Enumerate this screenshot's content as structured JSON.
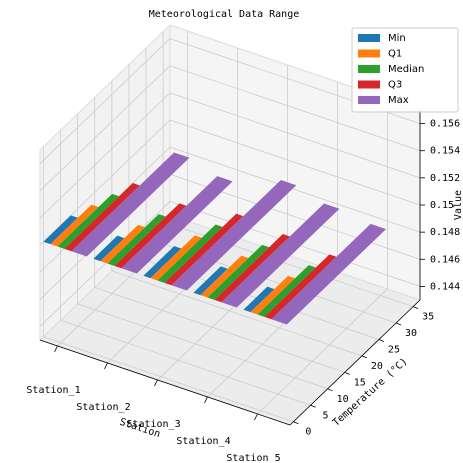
{
  "chart_data": {
    "type": "bar3d",
    "title": "Meteorological Data Range",
    "categories": [
      "Station_1",
      "Station_2",
      "Station_3",
      "Station_4",
      "Station_5"
    ],
    "xlabel": "Station",
    "ylabel": "Temperature (°C)",
    "zlabel": "Value",
    "series": [
      {
        "name": "Min",
        "color": "#1f77b4",
        "values": [
          8,
          7,
          9,
          8,
          7
        ]
      },
      {
        "name": "Q1",
        "color": "#ff7f0e",
        "values": [
          12,
          11,
          13,
          12,
          11
        ]
      },
      {
        "name": "Median",
        "color": "#2ca02c",
        "values": [
          16,
          15,
          17,
          16,
          15
        ]
      },
      {
        "name": "Q3",
        "color": "#d62728",
        "values": [
          20,
          19,
          21,
          20,
          19
        ]
      },
      {
        "name": "Max",
        "color": "#9467bd",
        "values": [
          30,
          28,
          32,
          30,
          29
        ]
      }
    ],
    "ylim": [
      -1,
      37
    ],
    "yticks": [
      0,
      5,
      10,
      15,
      20,
      25,
      30,
      35
    ],
    "zlim": [
      0.143,
      0.157
    ],
    "zticks": [
      0.144,
      0.146,
      0.148,
      0.15,
      0.152,
      0.154,
      0.156
    ],
    "grid": true,
    "legend": "upper right"
  }
}
